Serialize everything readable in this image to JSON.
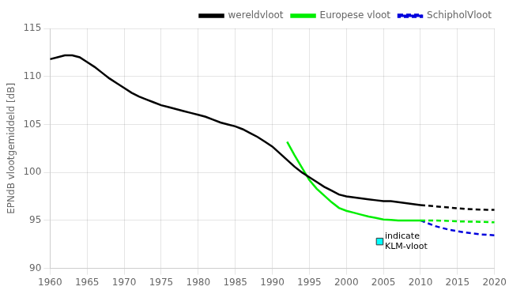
{
  "chart_data": {
    "type": "line",
    "ylabel": "EPNdB vlootgemiddeld [dB]",
    "xlim": [
      1960,
      2020
    ],
    "ylim": [
      90,
      115
    ],
    "xticks": [
      1960,
      1965,
      1970,
      1975,
      1980,
      1985,
      1990,
      1995,
      2000,
      2005,
      2010,
      2015,
      2020
    ],
    "yticks": [
      90,
      95,
      100,
      105,
      110,
      115
    ],
    "grid": true,
    "legend": "upper right",
    "series": [
      {
        "name": "wereldvloot",
        "color": "#000000",
        "line_style": "solid",
        "x": [
          1960,
          1961,
          1962,
          1963,
          1964,
          1965,
          1966,
          1967,
          1968,
          1969,
          1970,
          1971,
          1972,
          1973,
          1974,
          1975,
          1976,
          1977,
          1978,
          1979,
          1980,
          1981,
          1982,
          1983,
          1984,
          1985,
          1986,
          1987,
          1988,
          1989,
          1990,
          1991,
          1992,
          1993,
          1994,
          1995,
          1996,
          1997,
          1998,
          1999,
          2000,
          2001,
          2002,
          2003,
          2004,
          2005,
          2006,
          2007,
          2008,
          2009,
          2010
        ],
        "values": [
          111.8,
          112.0,
          112.2,
          112.2,
          112.0,
          111.5,
          111.0,
          110.4,
          109.8,
          109.3,
          108.8,
          108.3,
          107.9,
          107.6,
          107.3,
          107.0,
          106.8,
          106.6,
          106.4,
          106.2,
          106.0,
          105.8,
          105.5,
          105.2,
          105.0,
          104.8,
          104.5,
          104.1,
          103.7,
          103.2,
          102.7,
          102.0,
          101.3,
          100.6,
          100.0,
          99.5,
          99.0,
          98.5,
          98.1,
          97.7,
          97.5,
          97.4,
          97.3,
          97.2,
          97.1,
          97.0,
          97.0,
          96.9,
          96.8,
          96.7,
          96.6
        ]
      },
      {
        "name": "wereldvloot",
        "color": "#000000",
        "line_style": "dashed",
        "x": [
          2010,
          2013,
          2016,
          2019,
          2020
        ],
        "values": [
          96.6,
          96.4,
          96.2,
          96.1,
          96.1
        ]
      },
      {
        "name": "Europese vloot",
        "color": "#00ee00",
        "line_style": "solid",
        "x": [
          1992,
          1993,
          1994,
          1995,
          1996,
          1997,
          1998,
          1999,
          2000,
          2001,
          2002,
          2003,
          2004,
          2005,
          2006,
          2007,
          2008,
          2009,
          2010
        ],
        "values": [
          103.2,
          101.8,
          100.5,
          99.2,
          98.3,
          97.6,
          96.9,
          96.3,
          96.0,
          95.8,
          95.6,
          95.4,
          95.25,
          95.1,
          95.05,
          95.0,
          95.0,
          95.0,
          95.0
        ]
      },
      {
        "name": "Europese vloot",
        "color": "#00ee00",
        "line_style": "dashed",
        "x": [
          2010,
          2012,
          2015,
          2018,
          2020
        ],
        "values": [
          95.0,
          95.0,
          94.9,
          94.85,
          94.8
        ]
      },
      {
        "name": "SchipholVloot",
        "color": "#0000dd",
        "line_style": "dashed",
        "x": [
          2010,
          2012,
          2014,
          2016,
          2018,
          2020
        ],
        "values": [
          95.0,
          94.4,
          94.0,
          93.75,
          93.55,
          93.45
        ]
      },
      {
        "type": "scatter",
        "marker": "square",
        "color": "#00ffff",
        "x": [
          2004.5
        ],
        "values": [
          92.8
        ]
      }
    ],
    "annotations": [
      {
        "text": [
          "indicate",
          "KLM-vloot"
        ],
        "x": 2005.2,
        "y": 92.8
      }
    ]
  }
}
